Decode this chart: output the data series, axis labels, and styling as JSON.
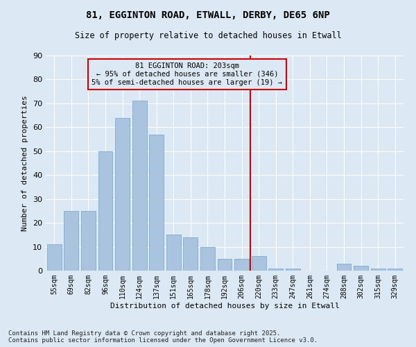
{
  "title_line1": "81, EGGINTON ROAD, ETWALL, DERBY, DE65 6NP",
  "title_line2": "Size of property relative to detached houses in Etwall",
  "xlabel": "Distribution of detached houses by size in Etwall",
  "ylabel": "Number of detached properties",
  "categories": [
    "55sqm",
    "69sqm",
    "82sqm",
    "96sqm",
    "110sqm",
    "124sqm",
    "137sqm",
    "151sqm",
    "165sqm",
    "178sqm",
    "192sqm",
    "206sqm",
    "220sqm",
    "233sqm",
    "247sqm",
    "261sqm",
    "274sqm",
    "288sqm",
    "302sqm",
    "315sqm",
    "329sqm"
  ],
  "values": [
    11,
    25,
    25,
    50,
    64,
    71,
    57,
    15,
    14,
    10,
    5,
    5,
    6,
    1,
    1,
    0,
    0,
    3,
    2,
    1,
    1
  ],
  "bar_color": "#aac4e0",
  "bar_edge_color": "#7aabcf",
  "vline_x": 11.5,
  "annotation_line1": "81 EGGINTON ROAD: 203sqm",
  "annotation_line2": "← 95% of detached houses are smaller (346)",
  "annotation_line3": "5% of semi-detached houses are larger (19) →",
  "vline_color": "#cc0000",
  "annotation_box_color": "#cc0000",
  "ylim": [
    0,
    90
  ],
  "yticks": [
    0,
    10,
    20,
    30,
    40,
    50,
    60,
    70,
    80,
    90
  ],
  "background_color": "#dce9f5",
  "grid_color": "#ffffff",
  "footer": "Contains HM Land Registry data © Crown copyright and database right 2025.\nContains public sector information licensed under the Open Government Licence v3.0.",
  "footer_fontsize": 6.5,
  "title1_fontsize": 10,
  "title2_fontsize": 8.5,
  "xlabel_fontsize": 8,
  "ylabel_fontsize": 8,
  "xtick_fontsize": 7,
  "ytick_fontsize": 8,
  "annot_fontsize": 7.5
}
